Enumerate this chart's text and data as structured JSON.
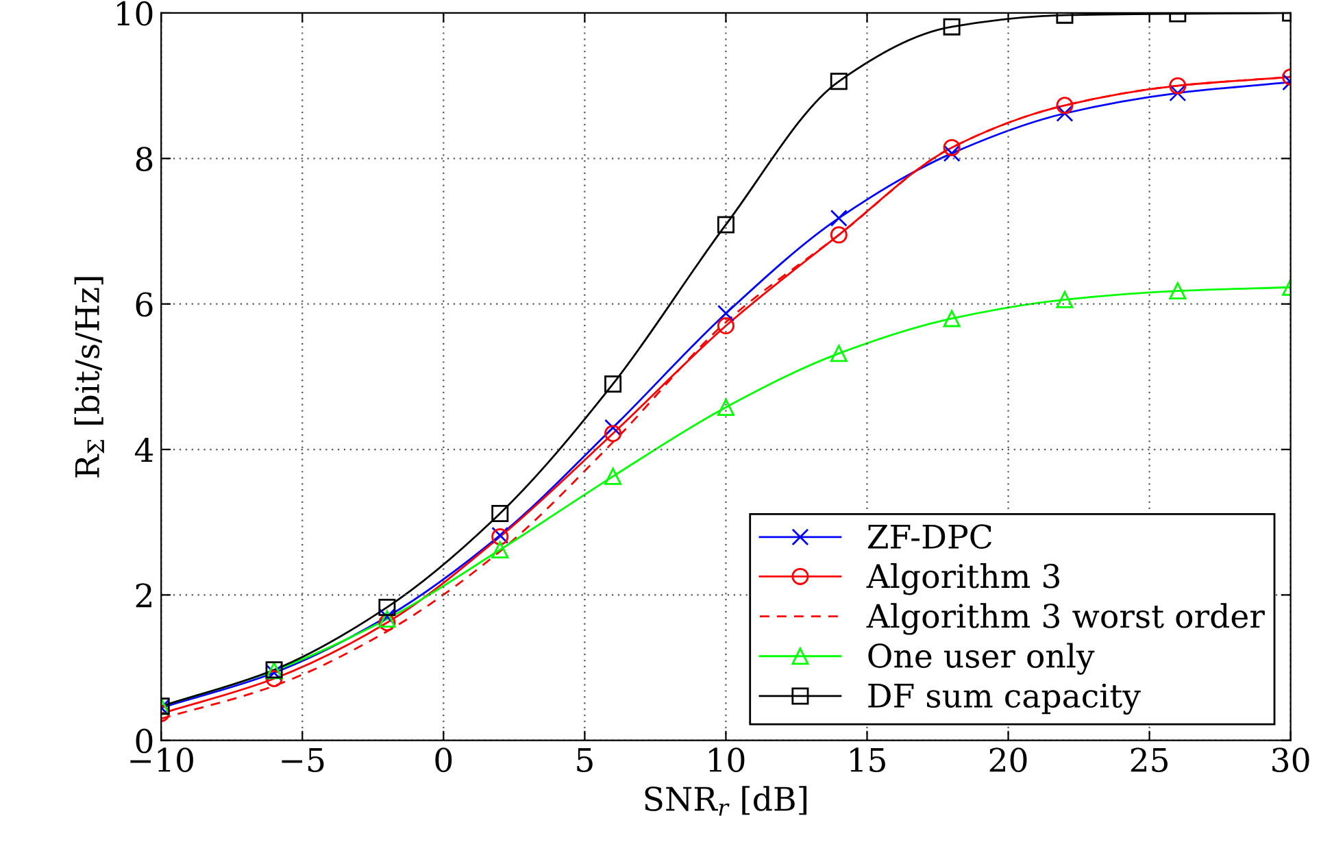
{
  "chart_data": {
    "type": "line",
    "xlabel": "SNR$_{r}$ [dB]",
    "ylabel": "R$_{Σ}$ [bit/s/Hz]",
    "xlim": [
      -10,
      30
    ],
    "ylim": [
      0,
      10
    ],
    "xticks": [
      {
        "value": -10,
        "label": "−10"
      },
      {
        "value": -5,
        "label": "−5"
      },
      0,
      5,
      10,
      15,
      20,
      25,
      30
    ],
    "yticks": [
      0,
      2,
      4,
      6,
      8,
      10
    ],
    "grid": true,
    "legend": "bottom right",
    "series": [
      {
        "name": "ZF-DPC",
        "color": "#0000ff",
        "marker": "cross",
        "line_style": "solid",
        "x": [
          -10,
          -6,
          -2,
          2,
          6,
          10,
          14,
          18,
          22,
          26,
          30
        ],
        "values": [
          0.45,
          0.93,
          1.7,
          2.82,
          4.3,
          5.87,
          7.18,
          8.07,
          8.62,
          8.9,
          9.05
        ]
      },
      {
        "name": "Algorithm 3",
        "color": "#ff0000",
        "marker": "circle",
        "line_style": "solid",
        "x": [
          -10,
          -6,
          -2,
          2,
          6,
          10,
          14,
          18,
          22,
          26,
          30
        ],
        "values": [
          0.37,
          0.85,
          1.62,
          2.8,
          4.22,
          5.7,
          6.95,
          8.15,
          8.73,
          9.0,
          9.12
        ]
      },
      {
        "name": "Algorithm 3 worst order",
        "color": "#ff0000",
        "marker": "none",
        "line_style": "dashed",
        "x": [
          -10,
          -6,
          -2,
          2,
          6,
          10,
          14,
          18,
          22,
          26,
          30
        ],
        "values": [
          0.3,
          0.75,
          1.5,
          2.6,
          4.1,
          5.75,
          6.95,
          8.15,
          8.73,
          9.0,
          9.12
        ]
      },
      {
        "name": "One user only",
        "color": "#00ff00",
        "marker": "triangle",
        "line_style": "solid",
        "x": [
          -10,
          -6,
          -2,
          2,
          6,
          10,
          14,
          18,
          22,
          26,
          30
        ],
        "values": [
          0.47,
          0.96,
          1.67,
          2.62,
          3.63,
          4.58,
          5.32,
          5.8,
          6.06,
          6.18,
          6.23
        ]
      },
      {
        "name": "DF sum capacity",
        "color": "#000000",
        "marker": "square",
        "line_style": "solid",
        "x": [
          -10,
          -6,
          -2,
          2,
          6,
          10,
          14,
          18,
          22,
          26,
          30
        ],
        "values": [
          0.47,
          0.97,
          1.83,
          3.12,
          4.9,
          7.09,
          9.06,
          9.81,
          9.97,
          9.99,
          10.0
        ]
      }
    ]
  }
}
